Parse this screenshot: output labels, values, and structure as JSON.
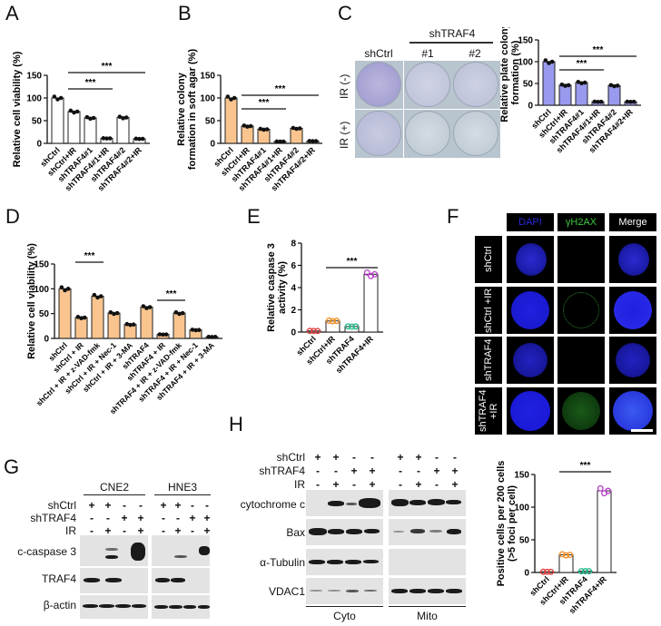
{
  "figure": {
    "panels": [
      "A",
      "B",
      "C",
      "D",
      "E",
      "F",
      "G",
      "H"
    ]
  },
  "chart_data": [
    {
      "panel": "A",
      "type": "bar",
      "ylabel": "Relative cell viability (%)",
      "ylim": [
        0,
        150
      ],
      "yticks": [
        0,
        50,
        100,
        150
      ],
      "categories": [
        "shCtrl",
        "shCtrl+IR",
        "shTRAF4#1",
        "shTRAF4#1+IR",
        "shTRAF4#2",
        "shTRAF4#2+IR"
      ],
      "values": [
        100,
        70,
        56,
        11,
        57,
        10
      ],
      "bar_color": "#ffffff",
      "significance": [
        {
          "from": "shCtrl+IR",
          "to": "shTRAF4#1+IR",
          "label": "***"
        },
        {
          "from": "shCtrl+IR",
          "to": "shTRAF4#2+IR",
          "label": "***"
        }
      ]
    },
    {
      "panel": "B",
      "type": "bar",
      "ylabel": "Relative colony formation in soft agar (%)",
      "ylim": [
        0,
        150
      ],
      "yticks": [
        0,
        50,
        100,
        150
      ],
      "categories": [
        "shCtrl",
        "shCtrl+IR",
        "shTRAF4#1",
        "shTRAF4#1+IR",
        "shTRAF4#2",
        "shTRAF4#2+IR"
      ],
      "values": [
        100,
        38,
        31,
        4,
        33,
        5
      ],
      "bar_color": "#f9c48e",
      "significance": [
        {
          "from": "shCtrl+IR",
          "to": "shTRAF4#1+IR",
          "label": "***"
        },
        {
          "from": "shCtrl+IR",
          "to": "shTRAF4#2+IR",
          "label": "***"
        }
      ]
    },
    {
      "panel": "C",
      "type": "bar",
      "ylabel": "Relative plate colony formation (%)",
      "ylim": [
        0,
        150
      ],
      "yticks": [
        0,
        50,
        100,
        150
      ],
      "categories": [
        "shCtrl",
        "shCtrl+IR",
        "shTRAF4#1",
        "shTRAF4#1+IR",
        "shTRAF4#2",
        "shTRAF4#2+IR"
      ],
      "values": [
        100,
        46,
        52,
        8,
        45,
        8
      ],
      "bar_color": "#9999ee",
      "significance": [
        {
          "from": "shCtrl+IR",
          "to": "shTRAF4#1+IR",
          "label": "***"
        },
        {
          "from": "shCtrl+IR",
          "to": "shTRAF4#2+IR",
          "label": "***"
        }
      ]
    },
    {
      "panel": "D",
      "type": "bar",
      "ylabel": "Relative cell viability (%)",
      "ylim": [
        0,
        150
      ],
      "yticks": [
        0,
        50,
        100,
        150
      ],
      "categories": [
        "shCtrl",
        "shCtrl + IR",
        "shCtrl + IR + z-VAD-fmk",
        "shCtrl + IR + Nec-1",
        "shCtrl + IR + 3-MA",
        "shTRAF4",
        "shTRAF4 + IR",
        "shTRAF4 + IR + z-VAD-fmk",
        "shTRAF4 + IR + Nec-1",
        "shTRAF4 + IR + 3-MA"
      ],
      "values": [
        100,
        42,
        85,
        51,
        28,
        63,
        8,
        51,
        17,
        3
      ],
      "bar_color": "#f9c48e",
      "significance": [
        {
          "from": "shCtrl + IR",
          "to": "shCtrl + IR + z-VAD-fmk",
          "label": "***"
        },
        {
          "from": "shTRAF4 + IR",
          "to": "shTRAF4 + IR + z-VAD-fmk",
          "label": "***"
        }
      ]
    },
    {
      "panel": "E",
      "type": "bar",
      "ylabel": "Relative caspase 3 activity (%)",
      "ylim": [
        0,
        8
      ],
      "yticks": [
        0,
        2,
        4,
        6,
        8
      ],
      "categories": [
        "shCtrl",
        "shCtrl+IR",
        "shTRAF4",
        "shTRAF4+IR"
      ],
      "values": [
        0.1,
        1.0,
        0.5,
        5.2
      ],
      "point_colors": [
        "#e03c3c",
        "#f08c1e",
        "#1fb88a",
        "#b43cc8"
      ],
      "significance": [
        {
          "from": "shCtrl+IR",
          "to": "shTRAF4+IR",
          "label": "***"
        }
      ]
    },
    {
      "panel": "F-quant",
      "type": "bar",
      "ylabel": "Positive cells per 200 cells (>5 foci per cell)",
      "ylim": [
        0,
        150
      ],
      "yticks": [
        0,
        50,
        100,
        150
      ],
      "categories": [
        "shCtrl",
        "shCtrl+IR",
        "shTRAF4",
        "shTRAF4+IR"
      ],
      "values": [
        1,
        27,
        2,
        125
      ],
      "point_colors": [
        "#e03c3c",
        "#f08c1e",
        "#1fb88a",
        "#b43cc8"
      ],
      "significance": [
        {
          "from": "shCtrl+IR",
          "to": "shTRAF4+IR",
          "label": "***"
        }
      ]
    }
  ],
  "panelC_image": {
    "group_header": "shTRAF4",
    "columns": [
      "shCtrl",
      "#1",
      "#2"
    ],
    "rows": [
      "IR (-)",
      "IR (+)"
    ]
  },
  "panelF_image": {
    "columns": [
      "DAPI",
      "γH2AX",
      "Merge"
    ],
    "rows": [
      "shCtrl",
      "shCtrl +IR",
      "shTRAF4",
      "shTRAF4 +IR"
    ]
  },
  "panelG_blot": {
    "cell_lines": [
      "CNE2",
      "HNE3"
    ],
    "conditions": [
      {
        "label": "shCtrl",
        "signs": [
          "+",
          "+",
          "-",
          "-"
        ]
      },
      {
        "label": "shTRAF4",
        "signs": [
          "-",
          "-",
          "+",
          "+"
        ]
      },
      {
        "label": "IR",
        "signs": [
          "-",
          "+",
          "-",
          "+"
        ]
      }
    ],
    "proteins": [
      "c-caspase 3",
      "TRAF4",
      "β-actin"
    ]
  },
  "panelH_blot": {
    "fractions": [
      "Cyto",
      "Mito"
    ],
    "conditions": [
      {
        "label": "shCtrl",
        "signs": [
          "+",
          "+",
          "-",
          "-"
        ]
      },
      {
        "label": "shTRAF4",
        "signs": [
          "-",
          "-",
          "+",
          "+"
        ]
      },
      {
        "label": "IR",
        "signs": [
          "-",
          "+",
          "-",
          "+"
        ]
      }
    ],
    "proteins": [
      "cytochrome c",
      "Bax",
      "α-Tubulin",
      "VDAC1"
    ]
  }
}
